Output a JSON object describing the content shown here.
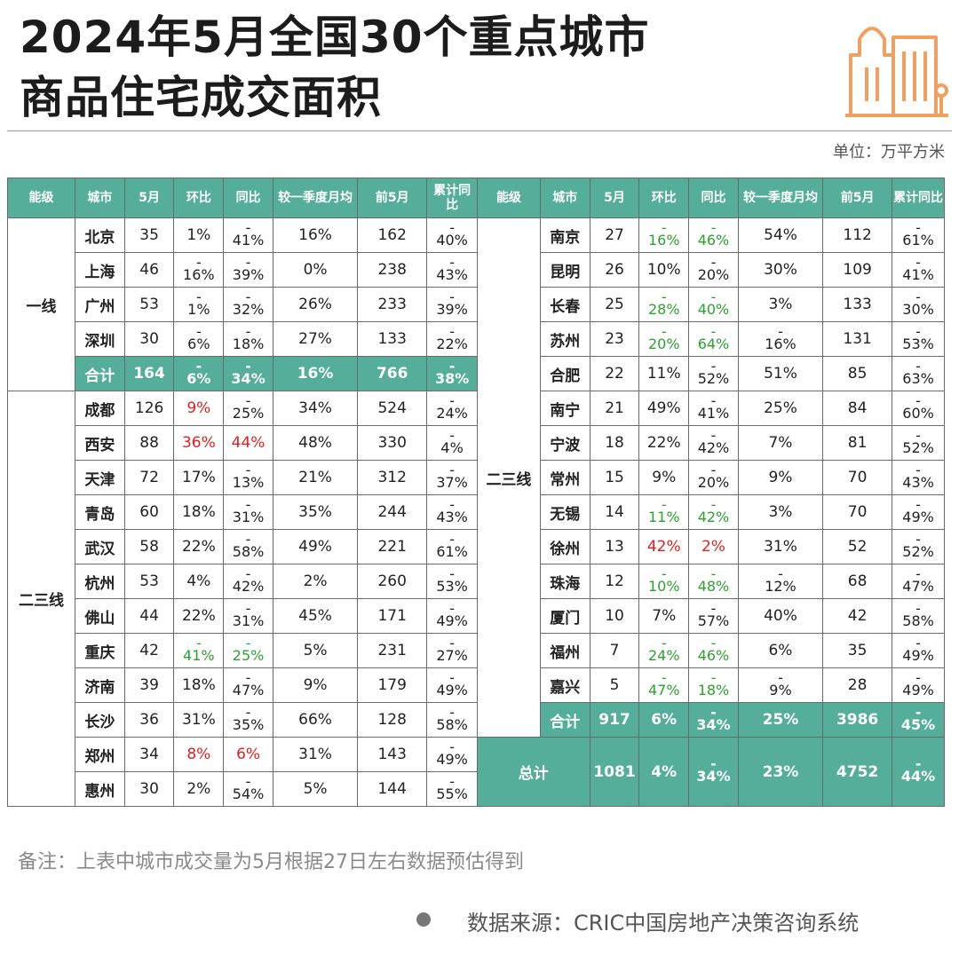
{
  "title_line1": "2024年5月全国30个重点城市",
  "title_line2": "商品住宅成交面积",
  "unit": "单位：万平方米",
  "headers": [
    "能级",
    "城市",
    "5月",
    "环比",
    "同比",
    "较一季度月均",
    "前5月",
    "累计同比"
  ],
  "left": {
    "tier1_label": "一线",
    "tier1_rows": [
      {
        "city": "北京",
        "may": "35",
        "mom": "1%",
        "yoy": "-41%",
        "q1": "16%",
        "ytd": "162",
        "cum": "-40%"
      },
      {
        "city": "上海",
        "may": "46",
        "mom": "-16%",
        "yoy": "-39%",
        "q1": "0%",
        "ytd": "238",
        "cum": "-43%"
      },
      {
        "city": "广州",
        "may": "53",
        "mom": "-1%",
        "yoy": "-32%",
        "q1": "26%",
        "ytd": "233",
        "cum": "-39%"
      },
      {
        "city": "深圳",
        "may": "30",
        "mom": "-6%",
        "yoy": "-18%",
        "q1": "27%",
        "ytd": "133",
        "cum": "-22%"
      }
    ],
    "tier1_total": {
      "city": "合计",
      "may": "164",
      "mom": "-6%",
      "yoy": "-34%",
      "q1": "16%",
      "ytd": "766",
      "cum": "-38%"
    },
    "tier23_label": "二三线",
    "tier23_rows": [
      {
        "city": "成都",
        "may": "126",
        "mom": "9%",
        "yoy": "-25%",
        "q1": "34%",
        "ytd": "524",
        "cum": "-24%"
      },
      {
        "city": "西安",
        "may": "88",
        "mom": "36%",
        "yoy": "44%",
        "q1": "48%",
        "ytd": "330",
        "cum": "-4%"
      },
      {
        "city": "天津",
        "may": "72",
        "mom": "17%",
        "yoy": "-13%",
        "q1": "21%",
        "ytd": "312",
        "cum": "-37%"
      },
      {
        "city": "青岛",
        "may": "60",
        "mom": "18%",
        "yoy": "-31%",
        "q1": "35%",
        "ytd": "244",
        "cum": "-43%"
      },
      {
        "city": "武汉",
        "may": "58",
        "mom": "22%",
        "yoy": "-58%",
        "q1": "49%",
        "ytd": "221",
        "cum": "-61%"
      },
      {
        "city": "杭州",
        "may": "53",
        "mom": "4%",
        "yoy": "-42%",
        "q1": "2%",
        "ytd": "260",
        "cum": "-53%"
      },
      {
        "city": "佛山",
        "may": "44",
        "mom": "22%",
        "yoy": "-31%",
        "q1": "45%",
        "ytd": "171",
        "cum": "-49%"
      },
      {
        "city": "重庆",
        "may": "42",
        "mom": "-41%",
        "yoy": "-25%",
        "q1": "5%",
        "ytd": "231",
        "cum": "-27%"
      },
      {
        "city": "济南",
        "may": "39",
        "mom": "18%",
        "yoy": "-47%",
        "q1": "9%",
        "ytd": "179",
        "cum": "-49%"
      },
      {
        "city": "长沙",
        "may": "36",
        "mom": "31%",
        "yoy": "-35%",
        "q1": "66%",
        "ytd": "128",
        "cum": "-58%"
      },
      {
        "city": "郑州",
        "may": "34",
        "mom": "8%",
        "yoy": "6%",
        "q1": "31%",
        "ytd": "143",
        "cum": "-49%"
      },
      {
        "city": "惠州",
        "may": "30",
        "mom": "2%",
        "yoy": "-54%",
        "q1": "5%",
        "ytd": "144",
        "cum": "-55%"
      }
    ]
  },
  "right": {
    "tier23_label": "二三线",
    "rows": [
      {
        "city": "南京",
        "may": "27",
        "mom": "-16%",
        "yoy": "-46%",
        "q1": "54%",
        "ytd": "112",
        "cum": "-61%"
      },
      {
        "city": "昆明",
        "may": "26",
        "mom": "10%",
        "yoy": "-20%",
        "q1": "30%",
        "ytd": "109",
        "cum": "-41%"
      },
      {
        "city": "长春",
        "may": "25",
        "mom": "-28%",
        "yoy": "-40%",
        "q1": "3%",
        "ytd": "133",
        "cum": "-30%"
      },
      {
        "city": "苏州",
        "may": "23",
        "mom": "-20%",
        "yoy": "-64%",
        "q1": "-16%",
        "ytd": "131",
        "cum": "-53%"
      },
      {
        "city": "合肥",
        "may": "22",
        "mom": "11%",
        "yoy": "-52%",
        "q1": "51%",
        "ytd": "85",
        "cum": "-63%"
      },
      {
        "city": "南宁",
        "may": "21",
        "mom": "49%",
        "yoy": "-41%",
        "q1": "25%",
        "ytd": "84",
        "cum": "-60%"
      },
      {
        "city": "宁波",
        "may": "18",
        "mom": "22%",
        "yoy": "-42%",
        "q1": "7%",
        "ytd": "81",
        "cum": "-52%"
      },
      {
        "city": "常州",
        "may": "15",
        "mom": "9%",
        "yoy": "-20%",
        "q1": "9%",
        "ytd": "70",
        "cum": "-43%"
      },
      {
        "city": "无锡",
        "may": "14",
        "mom": "-11%",
        "yoy": "-42%",
        "q1": "3%",
        "ytd": "70",
        "cum": "-49%"
      },
      {
        "city": "徐州",
        "may": "13",
        "mom": "42%",
        "yoy": "2%",
        "q1": "31%",
        "ytd": "52",
        "cum": "-52%"
      },
      {
        "city": "珠海",
        "may": "12",
        "mom": "-10%",
        "yoy": "-48%",
        "q1": "-12%",
        "ytd": "68",
        "cum": "-47%"
      },
      {
        "city": "厦门",
        "may": "10",
        "mom": "7%",
        "yoy": "-57%",
        "q1": "40%",
        "ytd": "42",
        "cum": "-58%"
      },
      {
        "city": "福州",
        "may": "7",
        "mom": "-24%",
        "yoy": "-46%",
        "q1": "6%",
        "ytd": "35",
        "cum": "-49%"
      },
      {
        "city": "嘉兴",
        "may": "5",
        "mom": "-47%",
        "yoy": "-18%",
        "q1": "-9%",
        "ytd": "28",
        "cum": "-49%"
      }
    ],
    "tier23_total": {
      "city": "合计",
      "may": "917",
      "mom": "6%",
      "yoy": "-34%",
      "q1": "25%",
      "ytd": "3986",
      "cum": "-45%"
    },
    "grand_total": {
      "city": "总计",
      "may": "1081",
      "mom": "4%",
      "yoy": "-34%",
      "q1": "23%",
      "ytd": "4752",
      "cum": "-44%"
    }
  },
  "note": "备注：上表中城市成交量为5月根据27日左右数据预估得到",
  "source": "数据来源：CRIC中国房地产决策咨询系统",
  "colors": {
    "header_bg": "#54ae99",
    "green": "#2ea12e",
    "red": "#e02020",
    "logo": "#f0a060"
  },
  "icons": {
    "logo": "buildings-icon",
    "bullet": "dot-icon"
  }
}
